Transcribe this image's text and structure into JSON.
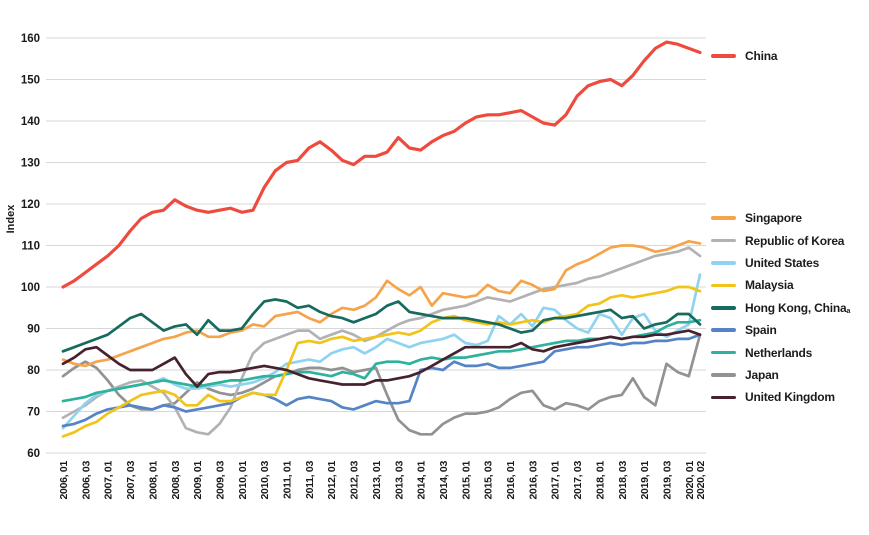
{
  "chart_data": {
    "type": "line",
    "title": "",
    "ylabel": "Index",
    "ylim": [
      60,
      160
    ],
    "y_ticks": [
      160,
      150,
      140,
      130,
      120,
      110,
      100,
      90,
      80,
      70,
      60
    ],
    "grid": "horizontal",
    "legend_position": "right",
    "x_ticks": [
      {
        "q": 0,
        "label": "2006, 01"
      },
      {
        "q": 2,
        "label": "2006, 03"
      },
      {
        "q": 4,
        "label": "2007, 01"
      },
      {
        "q": 6,
        "label": "2007, 03"
      },
      {
        "q": 8,
        "label": "2008, 01"
      },
      {
        "q": 10,
        "label": "2008, 03"
      },
      {
        "q": 12,
        "label": "2009, 01"
      },
      {
        "q": 14,
        "label": "2009, 03"
      },
      {
        "q": 16,
        "label": "2010, 01"
      },
      {
        "q": 18,
        "label": "2010, 03"
      },
      {
        "q": 20,
        "label": "2011, 01"
      },
      {
        "q": 22,
        "label": "2011, 03"
      },
      {
        "q": 24,
        "label": "2012, 01"
      },
      {
        "q": 26,
        "label": "2012, 03"
      },
      {
        "q": 28,
        "label": "2013, 01"
      },
      {
        "q": 30,
        "label": "2013, 03"
      },
      {
        "q": 32,
        "label": "2014, 01"
      },
      {
        "q": 34,
        "label": "2014, 03"
      },
      {
        "q": 36,
        "label": "2015, 01"
      },
      {
        "q": 38,
        "label": "2015, 03"
      },
      {
        "q": 40,
        "label": "2016, 01"
      },
      {
        "q": 42,
        "label": "2016, 03"
      },
      {
        "q": 44,
        "label": "2017, 01"
      },
      {
        "q": 46,
        "label": "2017, 03"
      },
      {
        "q": 48,
        "label": "2018, 01"
      },
      {
        "q": 50,
        "label": "2018, 03"
      },
      {
        "q": 52,
        "label": "2019, 01"
      },
      {
        "q": 54,
        "label": "2019, 03"
      },
      {
        "q": 56,
        "label": "2020, 01"
      },
      {
        "q": 57,
        "label": "2020, 02"
      }
    ],
    "x_range": [
      "2006 Q1",
      "2020 Q2"
    ],
    "x_frequency": "quarterly",
    "series": [
      {
        "name": "China",
        "color": "#ee4b3e",
        "values": [
          100,
          101.5,
          103.5,
          105.5,
          107.5,
          110,
          113.5,
          116.5,
          118,
          118.5,
          121,
          119.5,
          118.5,
          118,
          118.5,
          119,
          118,
          118.5,
          124,
          128,
          130,
          130.5,
          133.5,
          135,
          133,
          130.5,
          129.5,
          131.5,
          131.5,
          132.5,
          136,
          133.5,
          133,
          135,
          136.5,
          137.5,
          139.5,
          141,
          141.5,
          141.5,
          142,
          142.5,
          141,
          139.5,
          139,
          141.5,
          146,
          148.5,
          149.5,
          150,
          148.5,
          151,
          154.5,
          157.5,
          159,
          158.5,
          157.5,
          156.5
        ]
      },
      {
        "name": "Singapore",
        "color": "#f6a44c",
        "values": [
          82.5,
          81.5,
          81,
          82,
          82.5,
          83.5,
          84.5,
          85.5,
          86.5,
          87.5,
          88,
          89,
          89.5,
          88,
          88,
          89,
          89.5,
          91,
          90.5,
          93,
          93.5,
          94,
          92.5,
          91.5,
          93.5,
          95,
          94.5,
          95.5,
          97.5,
          101.5,
          99.5,
          98,
          100,
          95.5,
          98.5,
          98,
          97.5,
          98,
          100.5,
          99,
          98.5,
          101.5,
          100.5,
          99,
          99.5,
          104,
          105.5,
          106.5,
          108,
          109.5,
          110,
          110,
          109.5,
          108.5,
          109,
          110,
          111,
          110.5
        ]
      },
      {
        "name": "Republic of Korea",
        "color": "#b2b2b5",
        "values": [
          68.5,
          70,
          71.5,
          73.5,
          75,
          76,
          77,
          77.5,
          76,
          74.5,
          71,
          66,
          65,
          64.5,
          67,
          71,
          78,
          84,
          86.5,
          87.5,
          88.5,
          89.5,
          89.5,
          87.5,
          88.5,
          89.5,
          88.5,
          87,
          88,
          89.5,
          91,
          92,
          92.5,
          93.5,
          94.5,
          95,
          95.5,
          96.5,
          97.5,
          97,
          96.5,
          97.5,
          98.5,
          99.5,
          100,
          100.5,
          101,
          102,
          102.5,
          103.5,
          104.5,
          105.5,
          106.5,
          107.5,
          108,
          108.5,
          109.5,
          107.5
        ]
      },
      {
        "name": "United States",
        "color": "#8fd3f0",
        "values": [
          66,
          69,
          72,
          74,
          75,
          75.5,
          76,
          76.5,
          77,
          78,
          76.5,
          75.5,
          75.5,
          76,
          76.5,
          76,
          76.5,
          77,
          78,
          79.5,
          81.5,
          82,
          82.5,
          82,
          84,
          85,
          85.5,
          84,
          85.5,
          87.5,
          86.5,
          85.5,
          86.5,
          87,
          87.5,
          88.5,
          86.5,
          86,
          87,
          93,
          91,
          93.5,
          90.5,
          95,
          94.5,
          92,
          90,
          89,
          93.5,
          92.5,
          88.5,
          92.5,
          93.5,
          89.5,
          88,
          89.5,
          91,
          103
        ]
      },
      {
        "name": "Malaysia",
        "color": "#f2c318",
        "values": [
          64,
          65,
          66.5,
          67.5,
          69.5,
          71,
          72.5,
          74,
          74.5,
          75,
          74,
          71.5,
          71.5,
          74,
          72.5,
          72.5,
          73.5,
          74.5,
          74,
          74,
          80,
          86.5,
          87,
          86.5,
          87.5,
          88,
          87,
          87.5,
          88,
          88.5,
          89,
          88.5,
          89.5,
          91.5,
          92.5,
          93,
          92,
          91.5,
          91,
          91.5,
          91,
          91.5,
          92,
          91.5,
          92.5,
          93,
          93.5,
          95.5,
          96,
          97.5,
          98,
          97.5,
          98,
          98.5,
          99,
          100,
          100,
          99
        ]
      },
      {
        "name": "Hong Kong, China",
        "footnote": "a",
        "color": "#176a5e",
        "values": [
          84.5,
          85.5,
          86.5,
          87.5,
          88.5,
          90.5,
          92.5,
          93.5,
          91.5,
          89.5,
          90.5,
          91,
          88.5,
          92,
          89.5,
          89.5,
          90,
          93.5,
          96.5,
          97,
          96.5,
          95,
          95.5,
          94,
          93,
          92.5,
          91.5,
          92.5,
          93.5,
          95.5,
          96.5,
          94,
          93.5,
          93,
          92.5,
          92.5,
          92.5,
          92,
          91.5,
          91,
          90,
          89,
          89.5,
          92,
          92.5,
          92.5,
          93,
          93.5,
          94,
          94.5,
          92.5,
          93,
          90,
          91,
          91.5,
          93.5,
          93.5,
          91
        ]
      },
      {
        "name": "Spain",
        "color": "#5584c6",
        "values": [
          66.5,
          67,
          68,
          69.5,
          70.5,
          71,
          71.5,
          71,
          70.5,
          71.5,
          71,
          70,
          70.5,
          71,
          71.5,
          72,
          73.5,
          74.5,
          74,
          73,
          71.5,
          73,
          73.5,
          73,
          72.5,
          71,
          70.5,
          71.5,
          72.5,
          72,
          72,
          72.5,
          80,
          80.5,
          80,
          82,
          81,
          81,
          81.5,
          80.5,
          80.5,
          81,
          81.5,
          82,
          84.5,
          85,
          85.5,
          85.5,
          86,
          86.5,
          86,
          86.5,
          86.5,
          87,
          87,
          87.5,
          87.5,
          88.5
        ]
      },
      {
        "name": "Netherlands",
        "color": "#2fb29c",
        "values": [
          72.5,
          73,
          73.5,
          74.5,
          75,
          75.5,
          76,
          76.5,
          77,
          77.5,
          77,
          76.5,
          76,
          76.5,
          77,
          77.5,
          77.5,
          78,
          78.5,
          78.5,
          79,
          79.5,
          79.5,
          79,
          78.5,
          79.5,
          79,
          78,
          81.5,
          82,
          82,
          81.5,
          82.5,
          83,
          82.5,
          83,
          83,
          83.5,
          84,
          84.5,
          84.5,
          85,
          85.5,
          86,
          86.5,
          87,
          87,
          87.5,
          87.5,
          88,
          87.5,
          88,
          88.5,
          89,
          90.5,
          91.5,
          91.5,
          92
        ]
      },
      {
        "name": "Japan",
        "color": "#909294",
        "values": [
          78.5,
          80.5,
          82,
          80.5,
          77.5,
          74,
          71.5,
          70.5,
          70.5,
          71.5,
          72,
          74.5,
          77,
          75.5,
          74.5,
          74,
          74.5,
          75.5,
          77,
          78.5,
          79,
          80,
          80.5,
          80.5,
          80,
          80.5,
          79.5,
          80,
          80.5,
          74,
          68,
          65.5,
          64.5,
          64.5,
          67,
          68.5,
          69.5,
          69.5,
          70,
          71,
          73,
          74.5,
          75,
          71.5,
          70.5,
          72,
          71.5,
          70.5,
          72.5,
          73.5,
          74,
          78,
          73.5,
          71.5,
          81.5,
          79.5,
          78.5,
          88.5
        ]
      },
      {
        "name": "United Kingdom",
        "color": "#46222e",
        "values": [
          81.5,
          83,
          85,
          85.5,
          83.5,
          81.5,
          80,
          80,
          80,
          81.5,
          83,
          79,
          76,
          79,
          79.5,
          79.5,
          80,
          80.5,
          81,
          80.5,
          80,
          79,
          78,
          77.5,
          77,
          76.5,
          76.5,
          76.5,
          77.5,
          77.5,
          78,
          78.5,
          79.5,
          81,
          82.5,
          84,
          85.5,
          85.5,
          85.5,
          85.5,
          85.5,
          86.5,
          85,
          84.5,
          85.5,
          86,
          86.5,
          87,
          87.5,
          88,
          87.5,
          88,
          88,
          88.5,
          88.5,
          89,
          89.5,
          88.5
        ]
      }
    ]
  }
}
